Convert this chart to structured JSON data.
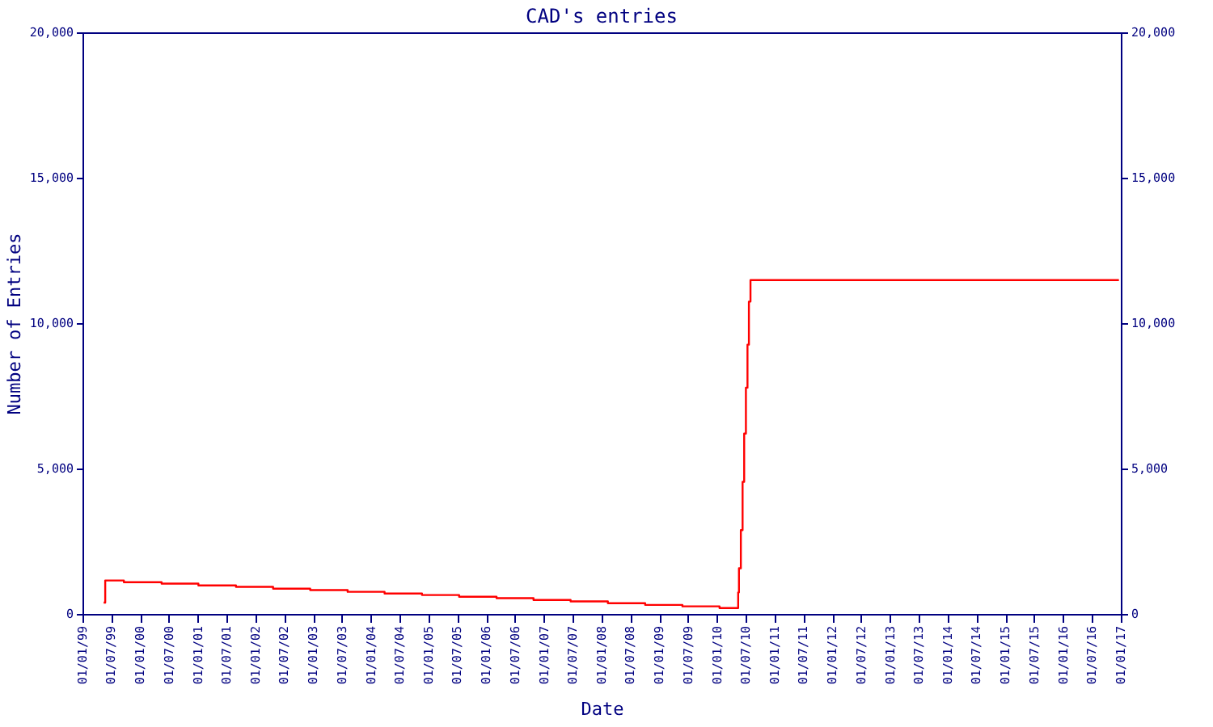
{
  "chart_data": {
    "type": "step",
    "title": "CAD's entries",
    "xlabel": "Date",
    "ylabel": "Number of Entries",
    "x": [
      "1999-05-15",
      "1999-05-25",
      "1999-09-20",
      "2000-05-16",
      "2001-01-04",
      "2001-08-30",
      "2002-04-22",
      "2002-12-13",
      "2003-08-07",
      "2004-03-28",
      "2004-11-20",
      "2005-07-13",
      "2006-03-07",
      "2006-10-27",
      "2007-06-19",
      "2008-02-10",
      "2008-10-03",
      "2009-05-27",
      "2010-01-17",
      "2010-05-15",
      "2010-05-20",
      "2010-06-01",
      "2010-06-12",
      "2010-06-22",
      "2010-07-03",
      "2010-07-13",
      "2010-07-22",
      "2010-08-01",
      "2016-12-20"
    ],
    "series": [
      {
        "color": "#ff0000",
        "values": [
          390,
          1150,
          1090,
          1040,
          980,
          930,
          870,
          820,
          760,
          700,
          650,
          590,
          540,
          480,
          430,
          370,
          310,
          260,
          200,
          740,
          1570,
          2880,
          4540,
          6200,
          7780,
          9260,
          10740,
          11480,
          11480
        ]
      }
    ],
    "xlim": [
      "1999-01-01",
      "2017-01-01"
    ],
    "xticks": [
      {
        "value": "1999-01-01",
        "label": "01/01/99"
      },
      {
        "value": "1999-07-01",
        "label": "01/07/99"
      },
      {
        "value": "2000-01-01",
        "label": "01/01/00"
      },
      {
        "value": "2000-07-01",
        "label": "01/07/00"
      },
      {
        "value": "2001-01-01",
        "label": "01/01/01"
      },
      {
        "value": "2001-07-01",
        "label": "01/07/01"
      },
      {
        "value": "2002-01-01",
        "label": "01/01/02"
      },
      {
        "value": "2002-07-01",
        "label": "01/07/02"
      },
      {
        "value": "2003-01-01",
        "label": "01/01/03"
      },
      {
        "value": "2003-07-01",
        "label": "01/07/03"
      },
      {
        "value": "2004-01-01",
        "label": "01/01/04"
      },
      {
        "value": "2004-07-01",
        "label": "01/07/04"
      },
      {
        "value": "2005-01-01",
        "label": "01/01/05"
      },
      {
        "value": "2005-07-01",
        "label": "01/07/05"
      },
      {
        "value": "2006-01-01",
        "label": "01/01/06"
      },
      {
        "value": "2006-07-01",
        "label": "01/07/06"
      },
      {
        "value": "2007-01-01",
        "label": "01/01/07"
      },
      {
        "value": "2007-07-01",
        "label": "01/07/07"
      },
      {
        "value": "2008-01-01",
        "label": "01/01/08"
      },
      {
        "value": "2008-07-01",
        "label": "01/07/08"
      },
      {
        "value": "2009-01-01",
        "label": "01/01/09"
      },
      {
        "value": "2009-07-01",
        "label": "01/07/09"
      },
      {
        "value": "2010-01-01",
        "label": "01/01/10"
      },
      {
        "value": "2010-07-01",
        "label": "01/07/10"
      },
      {
        "value": "2011-01-01",
        "label": "01/01/11"
      },
      {
        "value": "2011-07-01",
        "label": "01/07/11"
      },
      {
        "value": "2012-01-01",
        "label": "01/01/12"
      },
      {
        "value": "2012-07-01",
        "label": "01/07/12"
      },
      {
        "value": "2013-01-01",
        "label": "01/01/13"
      },
      {
        "value": "2013-07-01",
        "label": "01/07/13"
      },
      {
        "value": "2014-01-01",
        "label": "01/01/14"
      },
      {
        "value": "2014-07-01",
        "label": "01/07/14"
      },
      {
        "value": "2015-01-01",
        "label": "01/01/15"
      },
      {
        "value": "2015-07-01",
        "label": "01/07/15"
      },
      {
        "value": "2016-01-01",
        "label": "01/01/16"
      },
      {
        "value": "2016-07-01",
        "label": "01/07/16"
      },
      {
        "value": "2017-01-01",
        "label": "01/01/17"
      }
    ],
    "ylim": [
      0,
      20000
    ],
    "yticks": [
      0,
      {
        "value": 5000,
        "label": "5,000"
      },
      {
        "value": 10000,
        "label": "10,000"
      },
      {
        "value": 15000,
        "label": "15,000"
      },
      {
        "value": 20000,
        "label": "20,000"
      }
    ],
    "y2lim": [
      0,
      20000
    ],
    "y2ticks": [
      0,
      {
        "value": 5000,
        "label": "5,000"
      },
      {
        "value": 10000,
        "label": "10,000"
      },
      {
        "value": 15000,
        "label": "15,000"
      },
      {
        "value": 20000,
        "label": "20,000"
      }
    ],
    "grid": false
  }
}
